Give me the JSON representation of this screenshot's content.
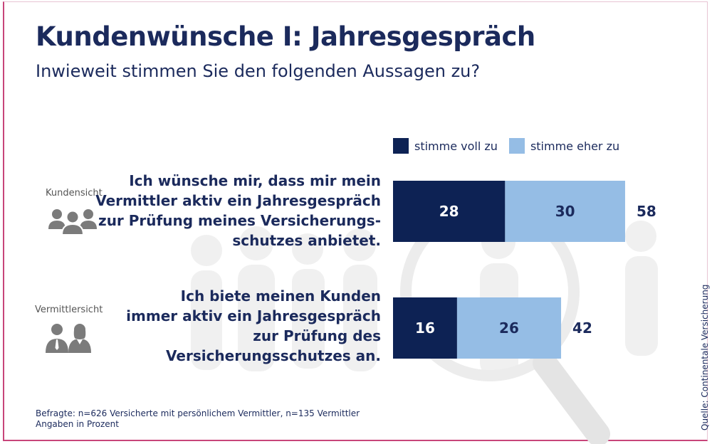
{
  "title": "Kundenwünsche I: Jahresgespräch",
  "subtitle": "Inwieweit stimmen Sie den folgenden Aussagen zu?",
  "legend": {
    "full": "stimme voll zu",
    "rather": "stimme eher zu"
  },
  "rows": [
    {
      "perspective": "Kundensicht",
      "question_lines": [
        "Ich wünsche mir, dass mir mein",
        "Vermittler aktiv ein Jahresgespräch",
        "zur Prüfung meines Versicherungs-",
        "schutzes anbietet."
      ]
    },
    {
      "perspective": "Vermittlersicht",
      "question_lines": [
        "Ich biete meinen Kunden",
        "immer aktiv ein Jahresgespräch",
        "zur Prüfung des",
        "Versicherungsschutzes an."
      ]
    }
  ],
  "footnote": {
    "line1": "Befragte: n=626 Versicherte mit persönlichem Vermittler, n=135 Vermittler",
    "line2": "Angaben in Prozent"
  },
  "source": "Quelle: Continentale Versicherung",
  "colors": {
    "dark": "#0d2254",
    "light": "#95bde5",
    "text": "#1b2a5c",
    "accent": "#c8457a"
  },
  "chart_data": {
    "type": "bar",
    "orientation": "horizontal",
    "stacked": true,
    "categories": [
      "Kundensicht",
      "Vermittlersicht"
    ],
    "series": [
      {
        "name": "stimme voll zu",
        "values": [
          28,
          16
        ]
      },
      {
        "name": "stimme eher zu",
        "values": [
          30,
          26
        ]
      }
    ],
    "totals": [
      58,
      42
    ],
    "unit": "Prozent"
  }
}
